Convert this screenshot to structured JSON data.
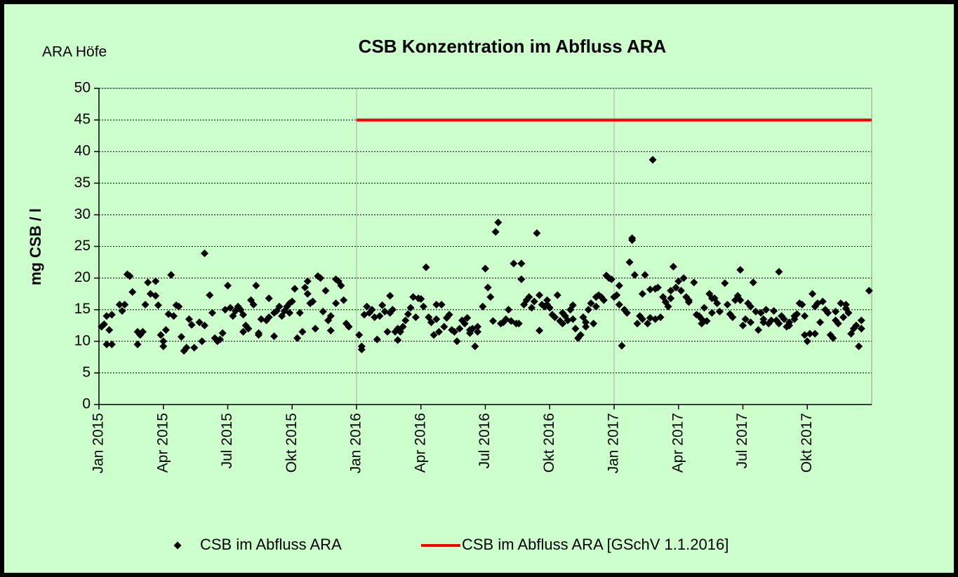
{
  "chart_data": {
    "type": "scatter",
    "title": "CSB Konzentration im Abfluss ARA",
    "subtitle": "ARA Höfe",
    "ylabel": "mg CSB / l",
    "xlim": [
      2015,
      2018
    ],
    "xticks": [
      {
        "value": 2015,
        "label": "Jan 2015"
      },
      {
        "value": 2015.25,
        "label": "Apr 2015"
      },
      {
        "value": 2015.5,
        "label": "Jul 2015"
      },
      {
        "value": 2015.75,
        "label": "Okt 2015"
      },
      {
        "value": 2016,
        "label": "Jan 2016"
      },
      {
        "value": 2016.25,
        "label": "Apr 2016"
      },
      {
        "value": 2016.5,
        "label": "Jul 2016"
      },
      {
        "value": 2016.75,
        "label": "Okt 2016"
      },
      {
        "value": 2017,
        "label": "Jan 2017"
      },
      {
        "value": 2017.25,
        "label": "Apr 2017"
      },
      {
        "value": 2017.5,
        "label": "Jul 2017"
      },
      {
        "value": 2017.75,
        "label": "Okt 2017"
      }
    ],
    "ylim": [
      0,
      50
    ],
    "yticks": [
      0,
      5,
      10,
      15,
      20,
      25,
      30,
      35,
      40,
      45,
      50
    ],
    "grid": true,
    "legend": "bottom",
    "series": [
      {
        "name": "CSB im Abfluss ARA",
        "color": "#000000",
        "style": "markers",
        "x": [
          2015.01,
          2015.02,
          2015.03,
          2015.03,
          2015.04,
          2015.05,
          2015.05,
          2015.08,
          2015.09,
          2015.1,
          2015.11,
          2015.12,
          2015.13,
          2015.15,
          2015.15,
          2015.16,
          2015.17,
          2015.18,
          2015.19,
          2015.2,
          2015.22,
          2015.22,
          2015.23,
          2015.24,
          2015.25,
          2015.25,
          2015.26,
          2015.27,
          2015.28,
          2015.29,
          2015.3,
          2015.31,
          2015.32,
          2015.33,
          2015.34,
          2015.35,
          2015.36,
          2015.37,
          2015.39,
          2015.4,
          2015.41,
          2015.41,
          2015.43,
          2015.44,
          2015.45,
          2015.46,
          2015.47,
          2015.48,
          2015.49,
          2015.5,
          2015.51,
          2015.52,
          2015.53,
          2015.54,
          2015.55,
          2015.56,
          2015.56,
          2015.57,
          2015.58,
          2015.59,
          2015.6,
          2015.61,
          2015.62,
          2015.62,
          2015.63,
          2015.65,
          2015.66,
          2015.66,
          2015.68,
          2015.68,
          2015.69,
          2015.7,
          2015.71,
          2015.72,
          2015.73,
          2015.74,
          2015.74,
          2015.75,
          2015.76,
          2015.77,
          2015.78,
          2015.79,
          2015.8,
          2015.81,
          2015.81,
          2015.82,
          2015.83,
          2015.84,
          2015.85,
          2015.86,
          2015.87,
          2015.88,
          2015.89,
          2015.9,
          2015.9,
          2015.92,
          2015.92,
          2015.93,
          2015.94,
          2015.95,
          2015.96,
          2015.97,
          2016.01,
          2016.02,
          2016.02,
          2016.03,
          2016.04,
          2016.05,
          2016.06,
          2016.07,
          2016.08,
          2016.09,
          2016.1,
          2016.11,
          2016.12,
          2016.13,
          2016.13,
          2016.14,
          2016.15,
          2016.16,
          2016.16,
          2016.17,
          2016.18,
          2016.19,
          2016.2,
          2016.21,
          2016.22,
          2016.23,
          2016.24,
          2016.25,
          2016.26,
          2016.27,
          2016.28,
          2016.29,
          2016.3,
          2016.31,
          2016.31,
          2016.32,
          2016.33,
          2016.34,
          2016.35,
          2016.36,
          2016.37,
          2016.38,
          2016.39,
          2016.4,
          2016.41,
          2016.42,
          2016.43,
          2016.44,
          2016.44,
          2016.45,
          2016.46,
          2016.47,
          2016.47,
          2016.49,
          2016.5,
          2016.51,
          2016.52,
          2016.53,
          2016.54,
          2016.55,
          2016.56,
          2016.57,
          2016.58,
          2016.59,
          2016.6,
          2016.61,
          2016.62,
          2016.63,
          2016.64,
          2016.64,
          2016.65,
          2016.66,
          2016.67,
          2016.68,
          2016.69,
          2016.7,
          2016.71,
          2016.71,
          2016.72,
          2016.73,
          2016.74,
          2016.74,
          2016.75,
          2016.76,
          2016.77,
          2016.78,
          2016.79,
          2016.8,
          2016.8,
          2016.81,
          2016.82,
          2016.83,
          2016.84,
          2016.84,
          2016.85,
          2016.86,
          2016.87,
          2016.88,
          2016.89,
          2016.89,
          2016.9,
          2016.91,
          2016.92,
          2016.93,
          2016.93,
          2016.94,
          2016.95,
          2016.96,
          2016.97,
          2016.98,
          2016.99,
          2017.0,
          2017.01,
          2017.02,
          2017.02,
          2017.03,
          2017.04,
          2017.05,
          2017.06,
          2017.07,
          2017.07,
          2017.08,
          2017.09,
          2017.1,
          2017.11,
          2017.11,
          2017.12,
          2017.13,
          2017.14,
          2017.14,
          2017.15,
          2017.16,
          2017.16,
          2017.17,
          2017.18,
          2017.19,
          2017.2,
          2017.21,
          2017.22,
          2017.22,
          2017.23,
          2017.24,
          2017.25,
          2017.26,
          2017.27,
          2017.28,
          2017.29,
          2017.29,
          2017.31,
          2017.32,
          2017.33,
          2017.34,
          2017.34,
          2017.35,
          2017.36,
          2017.37,
          2017.38,
          2017.38,
          2017.39,
          2017.4,
          2017.41,
          2017.43,
          2017.44,
          2017.45,
          2017.46,
          2017.47,
          2017.48,
          2017.49,
          2017.49,
          2017.5,
          2017.51,
          2017.52,
          2017.53,
          2017.53,
          2017.54,
          2017.55,
          2017.56,
          2017.57,
          2017.58,
          2017.58,
          2017.59,
          2017.6,
          2017.61,
          2017.62,
          2017.63,
          2017.64,
          2017.64,
          2017.65,
          2017.66,
          2017.67,
          2017.68,
          2017.68,
          2017.7,
          2017.7,
          2017.71,
          2017.72,
          2017.73,
          2017.74,
          2017.74,
          2017.75,
          2017.76,
          2017.77,
          2017.78,
          2017.78,
          2017.79,
          2017.8,
          2017.81,
          2017.82,
          2017.83,
          2017.84,
          2017.85,
          2017.86,
          2017.86,
          2017.87,
          2017.88,
          2017.89,
          2017.9,
          2017.9,
          2017.91,
          2017.92,
          2017.93,
          2017.94,
          2017.95,
          2017.96,
          2017.96,
          2017.99
        ],
        "values": [
          12.3,
          12.7,
          9.5,
          14.0,
          11.8,
          9.5,
          14.2,
          15.8,
          14.8,
          15.8,
          20.6,
          20.3,
          17.8,
          9.5,
          11.5,
          11.0,
          11.5,
          15.8,
          19.3,
          17.5,
          17.2,
          19.5,
          15.7,
          11.0,
          10.0,
          9.2,
          11.8,
          14.3,
          20.5,
          14.0,
          15.7,
          15.5,
          10.7,
          8.5,
          9.0,
          13.5,
          12.6,
          9.0,
          13.0,
          10.0,
          23.9,
          12.5,
          17.3,
          14.5,
          10.5,
          10.0,
          10.3,
          11.3,
          15.0,
          18.8,
          15.3,
          14.0,
          14.8,
          15.5,
          15.0,
          11.5,
          14.2,
          12.5,
          12.0,
          16.5,
          15.8,
          18.8,
          11.3,
          11.0,
          13.5,
          13.3,
          13.8,
          16.8,
          14.5,
          10.8,
          14.8,
          15.5,
          14.0,
          14.8,
          15.5,
          14.5,
          16.0,
          16.3,
          18.3,
          10.5,
          14.5,
          11.5,
          18.5,
          19.5,
          17.5,
          16.0,
          16.3,
          12.0,
          20.3,
          20.0,
          14.7,
          18.0,
          13.3,
          11.7,
          14.0,
          19.8,
          16.0,
          19.5,
          18.8,
          16.5,
          12.8,
          12.3,
          11.0,
          9.2,
          8.7,
          14.2,
          15.5,
          14.5,
          15.0,
          13.8,
          10.3,
          14.0,
          15.7,
          14.7,
          11.5,
          14.5,
          17.2,
          15.0,
          11.5,
          12.0,
          10.2,
          11.5,
          12.3,
          13.3,
          14.3,
          15.3,
          17.0,
          13.8,
          16.8,
          16.7,
          15.5,
          21.7,
          13.8,
          13.0,
          11.0,
          15.8,
          13.5,
          11.5,
          15.8,
          12.3,
          13.7,
          14.2,
          11.8,
          11.5,
          10.0,
          12.0,
          13.3,
          12.8,
          13.7,
          11.8,
          11.3,
          12.0,
          9.2,
          11.5,
          12.3,
          15.5,
          21.5,
          18.5,
          17.0,
          13.2,
          27.3,
          28.8,
          12.8,
          13.0,
          13.5,
          15.0,
          13.2,
          22.3,
          12.8,
          12.8,
          19.8,
          22.3,
          15.8,
          16.5,
          17.0,
          15.3,
          16.3,
          27.1,
          17.3,
          11.7,
          15.8,
          15.5,
          16.5,
          15.8,
          15.3,
          14.2,
          13.8,
          17.3,
          13.2,
          12.8,
          14.5,
          14.0,
          13.3,
          15.0,
          13.5,
          15.7,
          12.0,
          10.5,
          11.0,
          13.8,
          12.3,
          13.0,
          15.0,
          16.0,
          12.8,
          15.5,
          17.0,
          17.3,
          17.0,
          16.5,
          20.4,
          20.0,
          19.8,
          17.0,
          17.3,
          18.8,
          15.8,
          9.3,
          15.0,
          14.5,
          22.5,
          26.3,
          26.0,
          20.5,
          12.8,
          14.0,
          17.5,
          13.5,
          20.5,
          12.8,
          18.2,
          13.7,
          38.7,
          18.3,
          13.5,
          18.5,
          13.8,
          17.0,
          16.2,
          15.5,
          16.8,
          18.0,
          21.8,
          18.5,
          19.5,
          18.0,
          20.0,
          17.0,
          16.2,
          16.5,
          19.3,
          14.2,
          14.0,
          12.8,
          13.5,
          15.3,
          13.2,
          17.5,
          16.8,
          14.5,
          16.8,
          16.0,
          14.7,
          19.2,
          15.8,
          14.3,
          13.8,
          16.5,
          17.2,
          21.3,
          16.5,
          12.5,
          13.5,
          16.0,
          13.0,
          15.5,
          19.3,
          14.7,
          11.8,
          14.5,
          13.5,
          13.0,
          15.0,
          12.8,
          13.3,
          14.8,
          13.3,
          12.8,
          21.0,
          14.0,
          13.5,
          12.3,
          12.5,
          13.0,
          13.5,
          14.0,
          14.3,
          16.0,
          15.8,
          14.0,
          11.0,
          10.0,
          11.2,
          17.5,
          15.5,
          11.2,
          16.0,
          13.0,
          16.3,
          15.0,
          14.5,
          11.0,
          10.5,
          13.3,
          14.7,
          12.8,
          16.0,
          13.8,
          15.8,
          15.2,
          14.5,
          11.2,
          12.0,
          12.5,
          9.2,
          12.0,
          13.3,
          18.0
        ]
      },
      {
        "name": "CSB im Abfluss ARA [GSchV 1.1.2016]",
        "color": "#ff0000",
        "style": "line",
        "x": [
          2016,
          2018
        ],
        "values": [
          45,
          45
        ]
      }
    ]
  }
}
